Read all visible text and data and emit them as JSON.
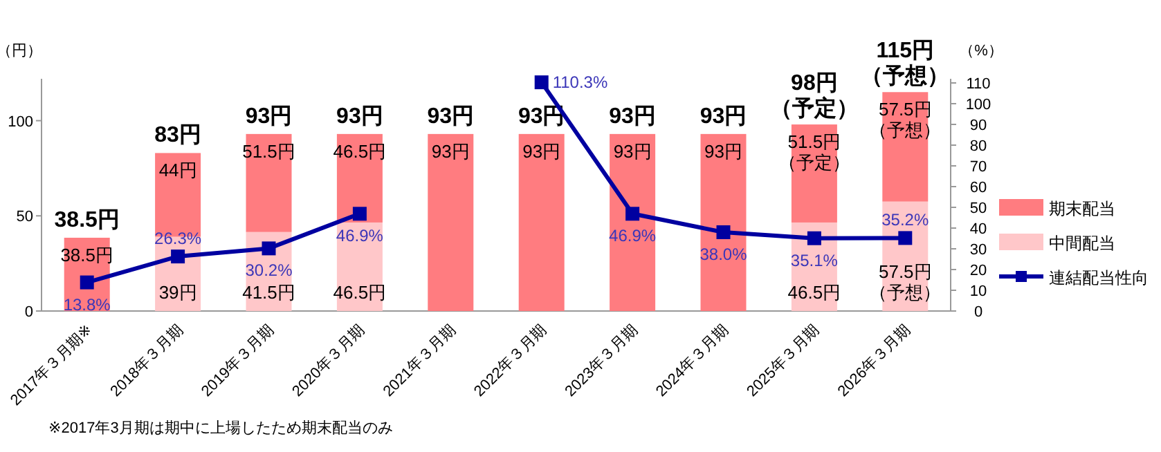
{
  "chart_data": {
    "type": "bar",
    "stacked": true,
    "ylabel": "（円）",
    "y2label": "（%）",
    "categories": [
      "2017年３月期※",
      "2018年３月期",
      "2019年３月期",
      "2020年３月期",
      "2021年３月期",
      "2022年３月期",
      "2023年３月期",
      "2024年３月期",
      "2025年３月期",
      "2026年３月期"
    ],
    "series": [
      {
        "name": "中間配当",
        "color": "#ffc7c9",
        "values": [
          null,
          39,
          41.5,
          46.5,
          null,
          null,
          null,
          null,
          46.5,
          57.5
        ],
        "value_labels": [
          null,
          "39円",
          "41.5円",
          "46.5円",
          null,
          null,
          null,
          null,
          "46.5円",
          "57.5円（予想）"
        ]
      },
      {
        "name": "期末配当",
        "color": "#ff7c80",
        "values": [
          38.5,
          44,
          51.5,
          46.5,
          93,
          93,
          93,
          93,
          51.5,
          57.5
        ],
        "value_labels": [
          "38.5円",
          "44円",
          "51.5円",
          "46.5円",
          "93円",
          "93円",
          "93円",
          "93円",
          "51.5円（予定）",
          "57.5円（予想）"
        ]
      },
      {
        "name": "連結配当性向",
        "type": "line",
        "axis": "y2",
        "color": "#0000a0",
        "marker": "square",
        "values": [
          13.8,
          26.3,
          30.2,
          46.9,
          null,
          110.3,
          46.9,
          38.0,
          35.1,
          35.2
        ],
        "value_labels": [
          "13.8%",
          "26.3%",
          "30.2%",
          "46.9%",
          null,
          "110.3%",
          "46.9%",
          "38.0%",
          "35.1%",
          "35.2%"
        ]
      }
    ],
    "totals": [
      "38.5円",
      "83円",
      "93円",
      "93円",
      "93円",
      "93円",
      "93円",
      "93円",
      "98円（予定）",
      "115円（予想）"
    ],
    "ylim": [
      0,
      122
    ],
    "yticks": [
      0,
      50,
      100
    ],
    "y2lim": [
      0,
      112
    ],
    "y2ticks": [
      0,
      10,
      20,
      30,
      40,
      50,
      60,
      70,
      80,
      90,
      100,
      110
    ],
    "grid": false,
    "legend": "right",
    "annotations": [
      "※2017年3月期は期中に上場したため期末配当のみ"
    ]
  }
}
